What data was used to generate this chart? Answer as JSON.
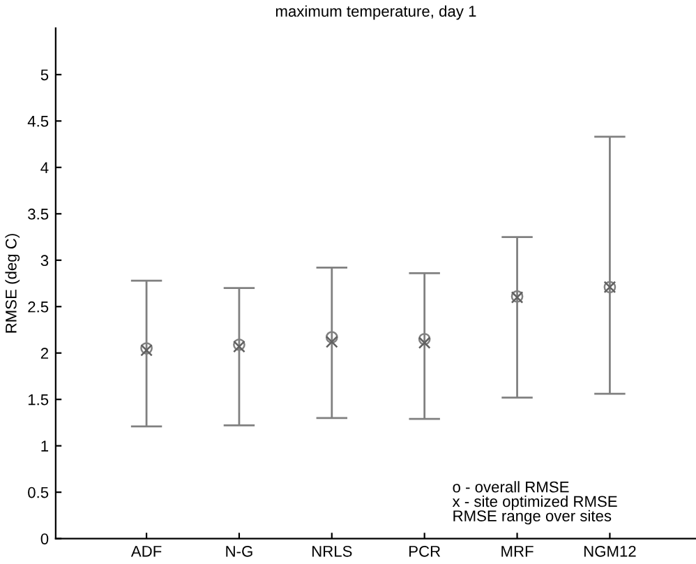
{
  "chart_data": {
    "type": "scatter",
    "title": "maximum temperature, day 1",
    "ylabel": "RMSE (deg C)",
    "categories": [
      "ADF",
      "N-G",
      "NRLS",
      "PCR",
      "MRF",
      "NGM12"
    ],
    "series": [
      {
        "color": "#808080",
        "marker": "circle",
        "values": [
          2.05,
          2.09,
          2.17,
          2.15,
          2.61,
          2.71
        ],
        "errors": [
          [
            1.21,
            2.78
          ],
          [
            1.22,
            2.7
          ],
          [
            1.3,
            2.92
          ],
          [
            1.29,
            2.86
          ],
          [
            1.52,
            3.25
          ],
          [
            1.56,
            4.33
          ]
        ]
      },
      {
        "color": "#606060",
        "marker": "cross",
        "values": [
          2.03,
          2.07,
          2.12,
          2.11,
          2.6,
          2.71
        ]
      }
    ],
    "ylim": [
      0,
      5.5
    ],
    "yticks": [
      0,
      0.5,
      1,
      1.5,
      2,
      2.5,
      3,
      3.5,
      4,
      4.5,
      5
    ],
    "grid": false,
    "legend": false,
    "annotations": [
      "o - overall RMSE",
      "x - site optimized RMSE",
      "RMSE range over sites"
    ]
  }
}
